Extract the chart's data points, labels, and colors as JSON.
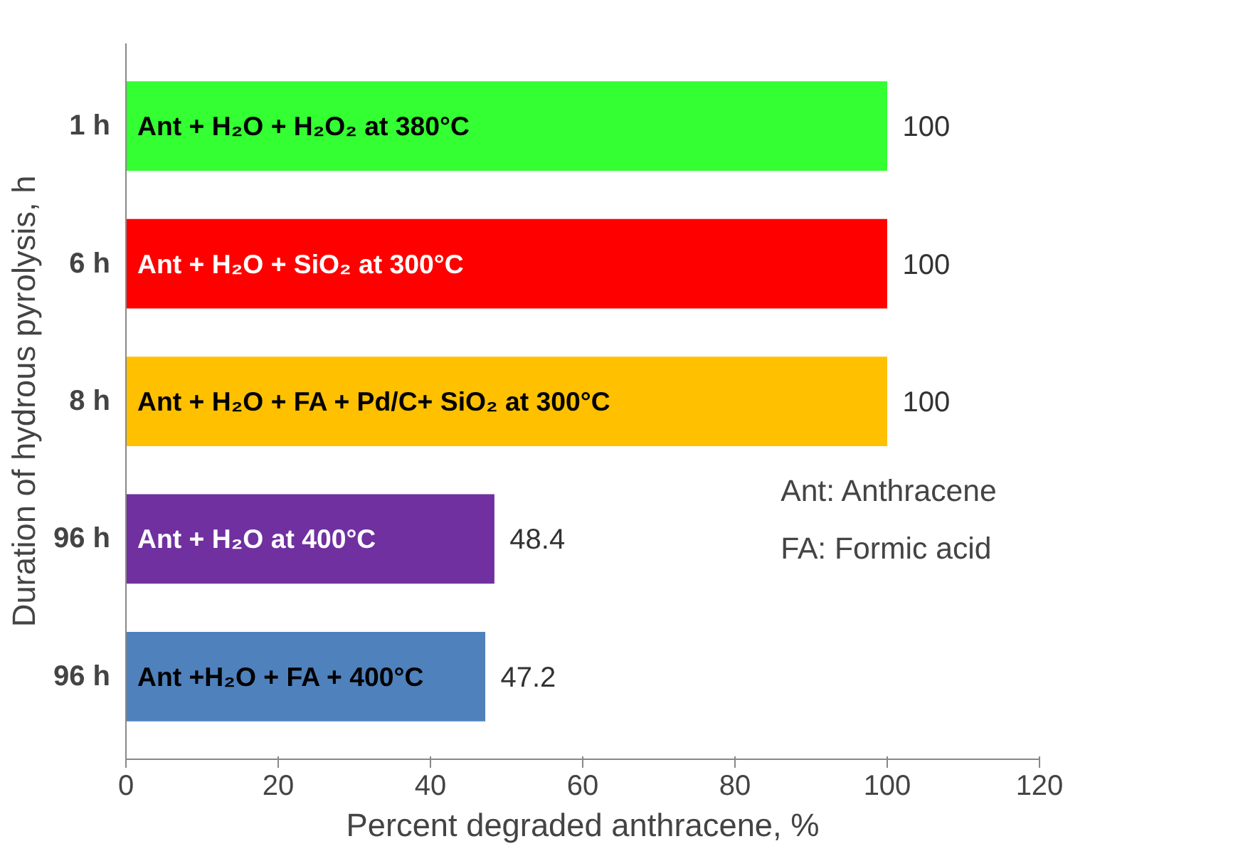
{
  "chart_data": {
    "type": "bar",
    "orientation": "horizontal",
    "categories": [
      "1 h",
      "6 h",
      "8 h",
      "96 h",
      "96 h"
    ],
    "series": [
      {
        "name": "Ant + H₂O + H₂O₂ at 380°C",
        "color": "#33ff33",
        "values": [
          100,
          null,
          null,
          null,
          null
        ]
      },
      {
        "name": "Ant + H₂O + SiO₂ at 300°C",
        "color": "#ff0000",
        "values": [
          null,
          100,
          null,
          null,
          null
        ]
      },
      {
        "name": "Ant + H₂O + FA + Pd/C+ SiO₂ at 300°C",
        "color": "#ffc000",
        "values": [
          null,
          null,
          100,
          null,
          null
        ]
      },
      {
        "name": "Ant + H₂O at 400°C",
        "color": "#7030a0",
        "values": [
          null,
          null,
          null,
          48.4,
          null
        ]
      },
      {
        "name": "Ant +H₂O + FA + 400°C",
        "color": "#4f81bd",
        "values": [
          null,
          null,
          null,
          null,
          47.2
        ]
      }
    ],
    "xlim": [
      0,
      120
    ],
    "xticks": [
      0,
      20,
      40,
      60,
      80,
      100,
      120
    ],
    "xlabel": "Percent degraded anthracene, %",
    "ylabel": "Duration of hydrous pyrolysis, h",
    "data_labels": true,
    "grid": false,
    "annotations": [
      "Ant: Anthracene",
      "FA: Formic acid"
    ]
  }
}
